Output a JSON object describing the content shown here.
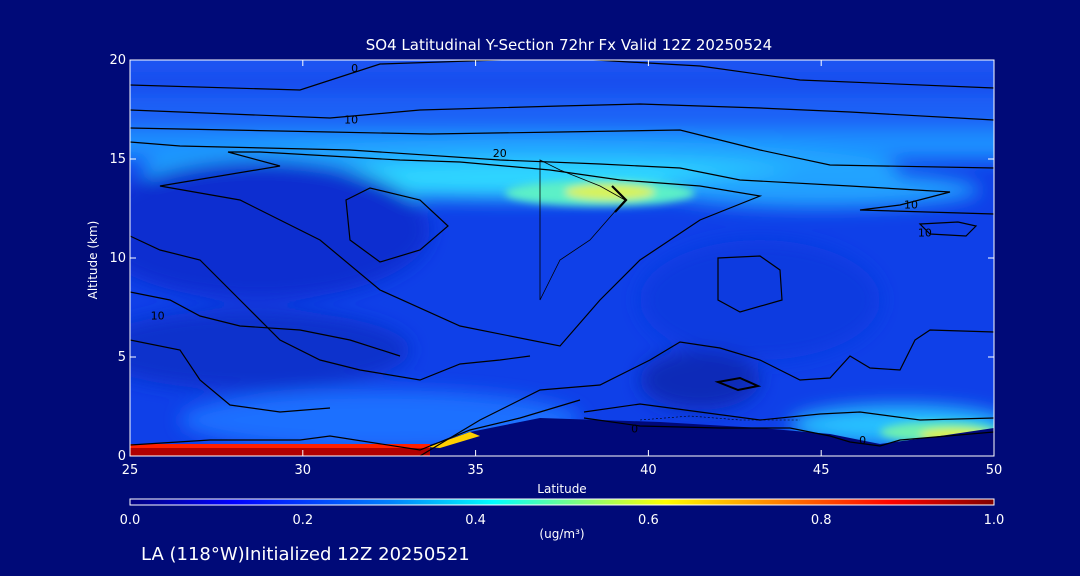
{
  "chart_data": {
    "type": "heatmap",
    "title": "SO4 Latitudinal Y-Section 72hr  Fx Valid 12Z 20250524",
    "xlabel": "Latitude",
    "ylabel": "Altitude (km)",
    "xlim": [
      25,
      50
    ],
    "ylim": [
      0,
      20
    ],
    "x_ticks": [
      25,
      30,
      35,
      40,
      45,
      50
    ],
    "y_ticks": [
      0,
      5,
      10,
      15,
      20
    ],
    "colorbar": {
      "range": [
        0.0,
        1.0
      ],
      "ticks": [
        "0.0",
        "0.2",
        "0.4",
        "0.6",
        "0.8",
        "1.0"
      ],
      "unit": "(ug/m³)",
      "colormap": [
        "#00007f",
        "#0000ff",
        "#0080ff",
        "#00ffff",
        "#ffff00",
        "#ff8000",
        "#ff0000",
        "#7f0000"
      ]
    },
    "features": [
      {
        "description": "upper layer high concentration band",
        "lat": [
          26,
          42
        ],
        "alt": [
          12,
          16
        ],
        "value": 0.35
      },
      {
        "description": "peak near tropopause",
        "lat": [
          38,
          39.5
        ],
        "alt": [
          12.5,
          13.5
        ],
        "value": 0.6
      },
      {
        "description": "surface maximum",
        "lat": [
          25,
          34
        ],
        "alt": [
          0,
          0.5
        ],
        "value": 1.0
      },
      {
        "description": "surface elevated",
        "lat": [
          46,
          50
        ],
        "alt": [
          0.5,
          2
        ],
        "value": 0.45
      }
    ],
    "contour_labels": [
      {
        "text": "10",
        "lat": 31.4,
        "alt": 17.0
      },
      {
        "text": "20",
        "lat": 35.7,
        "alt": 15.3
      },
      {
        "text": "10",
        "lat": 47.6,
        "alt": 12.7
      },
      {
        "text": "10",
        "lat": 48.0,
        "alt": 11.3
      },
      {
        "text": "10",
        "lat": 25.8,
        "alt": 7.1
      },
      {
        "text": "0",
        "lat": 31.5,
        "alt": 19.6
      },
      {
        "text": "0",
        "lat": 46.2,
        "alt": 0.8
      },
      {
        "text": "0",
        "lat": 39.6,
        "alt": 1.4
      }
    ]
  },
  "footer_text": "LA (118°W)Initialized 12Z 20250521"
}
